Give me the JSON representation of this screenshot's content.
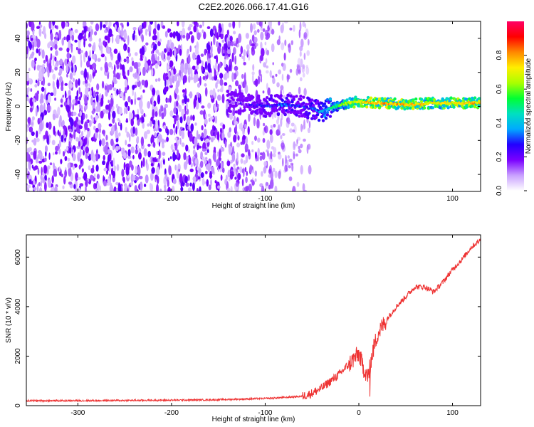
{
  "title": "C2E2.2026.066.17.41.G16",
  "colors": {
    "snr_line": "#ee3333",
    "background": "#ffffff",
    "axis": "#000000",
    "colormap": [
      "#ffffff",
      "#c9a0ff",
      "#7a00ff",
      "#2200ff",
      "#00aaff",
      "#00e0c0",
      "#00ff33",
      "#aaff00",
      "#ffee00",
      "#ff8800",
      "#ff0000",
      "#ff0066"
    ]
  },
  "chart_data": [
    {
      "type": "heatmap",
      "xlabel": "Height of straight line (km)",
      "ylabel": "Frequency (Hz)",
      "xlim": [
        -355,
        130
      ],
      "ylim": [
        -50,
        50
      ],
      "xticks": [
        -300,
        -200,
        -100,
        0,
        100
      ],
      "yticks": [
        -40,
        -20,
        0,
        20,
        40
      ],
      "colorbar": {
        "label": "Normalized spectral amplitude",
        "range": [
          0,
          1
        ],
        "ticks": [
          0.0,
          0.2,
          0.4,
          0.6,
          0.8
        ]
      },
      "signal_track": {
        "x": [
          -140,
          -120,
          -100,
          -80,
          -60,
          -40,
          -20,
          0,
          20,
          50,
          80,
          110,
          130
        ],
        "y": [
          3,
          1,
          0,
          1,
          0,
          -3,
          1,
          3,
          2,
          1,
          2,
          2,
          2
        ],
        "amplitude": [
          0.15,
          0.2,
          0.25,
          0.3,
          0.25,
          0.35,
          0.55,
          0.7,
          0.8,
          0.75,
          0.7,
          0.75,
          0.75
        ]
      },
      "noise_extent_x": [
        -355,
        -60
      ]
    },
    {
      "type": "line",
      "xlabel": "Height of straight line (km)",
      "ylabel": "SNR (10 * v/v)",
      "xlim": [
        -355,
        130
      ],
      "ylim": [
        0,
        6900
      ],
      "xticks": [
        -300,
        -200,
        -100,
        0,
        100
      ],
      "yticks": [
        0,
        2000,
        4000,
        6000
      ],
      "series": [
        {
          "x": [
            -355,
            -300,
            -250,
            -200,
            -150,
            -100,
            -80,
            -60,
            -50,
            -40,
            -30,
            -20,
            -10,
            0,
            5,
            10,
            15,
            20,
            30,
            40,
            50,
            60,
            70,
            80,
            90,
            100,
            110,
            120,
            130
          ],
          "values": [
            200,
            200,
            210,
            220,
            240,
            290,
            330,
            380,
            500,
            700,
            1000,
            1300,
            1700,
            2100,
            1500,
            1200,
            2200,
            2900,
            3500,
            4000,
            4400,
            4800,
            4800,
            4600,
            5000,
            5500,
            5900,
            6400,
            6700
          ]
        }
      ]
    }
  ]
}
